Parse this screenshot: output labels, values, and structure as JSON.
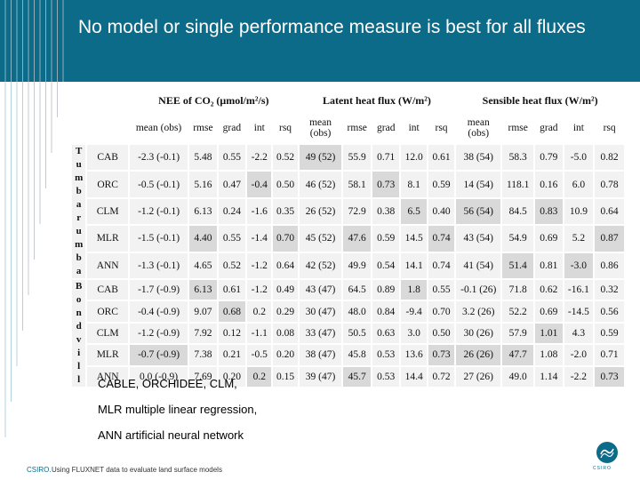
{
  "slide": {
    "title": "No model or single performance measure is best for all fluxes",
    "notes": [
      "CABLE, ORCHIDEE, CLM,",
      "MLR multiple linear regression,",
      "ANN artificial neural network"
    ],
    "footer_brand": "CSIRO.",
    "footer_text": "Using FLUXNET data to evaluate land surface models",
    "logo_text": "CSIRO",
    "header_color": "#0d6b8a",
    "shade_color": "#d9d9d9"
  },
  "table": {
    "groups": [
      "NEE of CO₂ (μmol/m²/s)",
      "Latent heat flux (W/m²)",
      "Sensible heat flux (W/m²)"
    ],
    "col_headers": [
      "mean (obs)",
      "rmse",
      "grad",
      "int",
      "rsq",
      "mean (obs)",
      "rmse",
      "grad",
      "int",
      "rsq",
      "mean (obs)",
      "rmse",
      "grad",
      "int",
      "rsq"
    ],
    "sites": [
      {
        "name": "Tumbarumba",
        "rows": [
          {
            "model": "CAB",
            "cells": [
              {
                "v": "-2.3 (-0.1)",
                "s": false
              },
              {
                "v": "5.48",
                "s": false
              },
              {
                "v": "0.55",
                "s": false
              },
              {
                "v": "-2.2",
                "s": false
              },
              {
                "v": "0.52",
                "s": false
              },
              {
                "v": "49 (52)",
                "s": true
              },
              {
                "v": "55.9",
                "s": false
              },
              {
                "v": "0.71",
                "s": false
              },
              {
                "v": "12.0",
                "s": false
              },
              {
                "v": "0.61",
                "s": false
              },
              {
                "v": "38 (54)",
                "s": false
              },
              {
                "v": "58.3",
                "s": false
              },
              {
                "v": "0.79",
                "s": false
              },
              {
                "v": "-5.0",
                "s": false
              },
              {
                "v": "0.82",
                "s": false
              }
            ]
          },
          {
            "model": "ORC",
            "cells": [
              {
                "v": "-0.5 (-0.1)",
                "s": false
              },
              {
                "v": "5.16",
                "s": false
              },
              {
                "v": "0.47",
                "s": false
              },
              {
                "v": "-0.4",
                "s": true
              },
              {
                "v": "0.50",
                "s": false
              },
              {
                "v": "46 (52)",
                "s": false
              },
              {
                "v": "58.1",
                "s": false
              },
              {
                "v": "0.73",
                "s": true
              },
              {
                "v": "8.1",
                "s": false
              },
              {
                "v": "0.59",
                "s": false
              },
              {
                "v": "14 (54)",
                "s": false
              },
              {
                "v": "118.1",
                "s": false
              },
              {
                "v": "0.16",
                "s": false
              },
              {
                "v": "6.0",
                "s": false
              },
              {
                "v": "0.78",
                "s": false
              }
            ]
          },
          {
            "model": "CLM",
            "cells": [
              {
                "v": "-1.2 (-0.1)",
                "s": false
              },
              {
                "v": "6.13",
                "s": false
              },
              {
                "v": "0.24",
                "s": false
              },
              {
                "v": "-1.6",
                "s": false
              },
              {
                "v": "0.35",
                "s": false
              },
              {
                "v": "26 (52)",
                "s": false
              },
              {
                "v": "72.9",
                "s": false
              },
              {
                "v": "0.38",
                "s": false
              },
              {
                "v": "6.5",
                "s": true
              },
              {
                "v": "0.40",
                "s": false
              },
              {
                "v": "56 (54)",
                "s": true
              },
              {
                "v": "84.5",
                "s": false
              },
              {
                "v": "0.83",
                "s": true
              },
              {
                "v": "10.9",
                "s": false
              },
              {
                "v": "0.64",
                "s": false
              }
            ]
          },
          {
            "model": "MLR",
            "cells": [
              {
                "v": "-1.5 (-0.1)",
                "s": false
              },
              {
                "v": "4.40",
                "s": true
              },
              {
                "v": "0.55",
                "s": false
              },
              {
                "v": "-1.4",
                "s": false
              },
              {
                "v": "0.70",
                "s": true
              },
              {
                "v": "45 (52)",
                "s": false
              },
              {
                "v": "47.6",
                "s": true
              },
              {
                "v": "0.59",
                "s": false
              },
              {
                "v": "14.5",
                "s": false
              },
              {
                "v": "0.74",
                "s": true
              },
              {
                "v": "43 (54)",
                "s": false
              },
              {
                "v": "54.9",
                "s": false
              },
              {
                "v": "0.69",
                "s": false
              },
              {
                "v": "5.2",
                "s": false
              },
              {
                "v": "0.87",
                "s": true
              }
            ]
          },
          {
            "model": "ANN",
            "cells": [
              {
                "v": "-1.3 (-0.1)",
                "s": false
              },
              {
                "v": "4.65",
                "s": false
              },
              {
                "v": "0.52",
                "s": false
              },
              {
                "v": "-1.2",
                "s": false
              },
              {
                "v": "0.64",
                "s": false
              },
              {
                "v": "42 (52)",
                "s": false
              },
              {
                "v": "49.9",
                "s": false
              },
              {
                "v": "0.54",
                "s": false
              },
              {
                "v": "14.1",
                "s": false
              },
              {
                "v": "0.74",
                "s": false
              },
              {
                "v": "41 (54)",
                "s": false
              },
              {
                "v": "51.4",
                "s": true
              },
              {
                "v": "0.81",
                "s": false
              },
              {
                "v": "-3.0",
                "s": true
              },
              {
                "v": "0.86",
                "s": false
              }
            ]
          }
        ]
      },
      {
        "name": "Bondvill",
        "rows": [
          {
            "model": "CAB",
            "cells": [
              {
                "v": "-1.7 (-0.9)",
                "s": false
              },
              {
                "v": "6.13",
                "s": true
              },
              {
                "v": "0.61",
                "s": false
              },
              {
                "v": "-1.2",
                "s": false
              },
              {
                "v": "0.49",
                "s": false
              },
              {
                "v": "43 (47)",
                "s": false
              },
              {
                "v": "64.5",
                "s": false
              },
              {
                "v": "0.89",
                "s": false
              },
              {
                "v": "1.8",
                "s": true
              },
              {
                "v": "0.55",
                "s": false
              },
              {
                "v": "-0.1 (26)",
                "s": false
              },
              {
                "v": "71.8",
                "s": false
              },
              {
                "v": "0.62",
                "s": false
              },
              {
                "v": "-16.1",
                "s": false
              },
              {
                "v": "0.32",
                "s": false
              }
            ]
          },
          {
            "model": "ORC",
            "cells": [
              {
                "v": "-0.4 (-0.9)",
                "s": false
              },
              {
                "v": "9.07",
                "s": false
              },
              {
                "v": "0.68",
                "s": true
              },
              {
                "v": "0.2",
                "s": false
              },
              {
                "v": "0.29",
                "s": false
              },
              {
                "v": "30 (47)",
                "s": false
              },
              {
                "v": "48.0",
                "s": false
              },
              {
                "v": "0.84",
                "s": false
              },
              {
                "v": "-9.4",
                "s": false
              },
              {
                "v": "0.70",
                "s": false
              },
              {
                "v": "3.2 (26)",
                "s": false
              },
              {
                "v": "52.2",
                "s": false
              },
              {
                "v": "0.69",
                "s": false
              },
              {
                "v": "-14.5",
                "s": false
              },
              {
                "v": "0.56",
                "s": false
              }
            ]
          },
          {
            "model": "CLM",
            "cells": [
              {
                "v": "-1.2 (-0.9)",
                "s": false
              },
              {
                "v": "7.92",
                "s": false
              },
              {
                "v": "0.12",
                "s": false
              },
              {
                "v": "-1.1",
                "s": false
              },
              {
                "v": "0.08",
                "s": false
              },
              {
                "v": "33 (47)",
                "s": false
              },
              {
                "v": "50.5",
                "s": false
              },
              {
                "v": "0.63",
                "s": false
              },
              {
                "v": "3.0",
                "s": false
              },
              {
                "v": "0.50",
                "s": false
              },
              {
                "v": "30 (26)",
                "s": false
              },
              {
                "v": "57.9",
                "s": false
              },
              {
                "v": "1.01",
                "s": true
              },
              {
                "v": "4.3",
                "s": false
              },
              {
                "v": "0.59",
                "s": false
              }
            ]
          },
          {
            "model": "MLR",
            "cells": [
              {
                "v": "-0.7 (-0.9)",
                "s": true
              },
              {
                "v": "7.38",
                "s": false
              },
              {
                "v": "0.21",
                "s": false
              },
              {
                "v": "-0.5",
                "s": false
              },
              {
                "v": "0.20",
                "s": false
              },
              {
                "v": "38 (47)",
                "s": false
              },
              {
                "v": "45.8",
                "s": false
              },
              {
                "v": "0.53",
                "s": false
              },
              {
                "v": "13.6",
                "s": false
              },
              {
                "v": "0.73",
                "s": true
              },
              {
                "v": "26 (26)",
                "s": true
              },
              {
                "v": "47.7",
                "s": true
              },
              {
                "v": "1.08",
                "s": false
              },
              {
                "v": "-2.0",
                "s": false
              },
              {
                "v": "0.71",
                "s": false
              }
            ]
          },
          {
            "model": "ANN",
            "cells": [
              {
                "v": "0.0 (-0.9)",
                "s": false
              },
              {
                "v": "7.69",
                "s": false
              },
              {
                "v": "0.20",
                "s": false
              },
              {
                "v": "0.2",
                "s": true
              },
              {
                "v": "0.15",
                "s": false
              },
              {
                "v": "39 (47)",
                "s": false
              },
              {
                "v": "45.7",
                "s": true
              },
              {
                "v": "0.53",
                "s": false
              },
              {
                "v": "14.4",
                "s": false
              },
              {
                "v": "0.72",
                "s": false
              },
              {
                "v": "27 (26)",
                "s": false
              },
              {
                "v": "49.0",
                "s": false
              },
              {
                "v": "1.14",
                "s": false
              },
              {
                "v": "-2.2",
                "s": false
              },
              {
                "v": "0.73",
                "s": true
              }
            ]
          }
        ]
      }
    ]
  }
}
